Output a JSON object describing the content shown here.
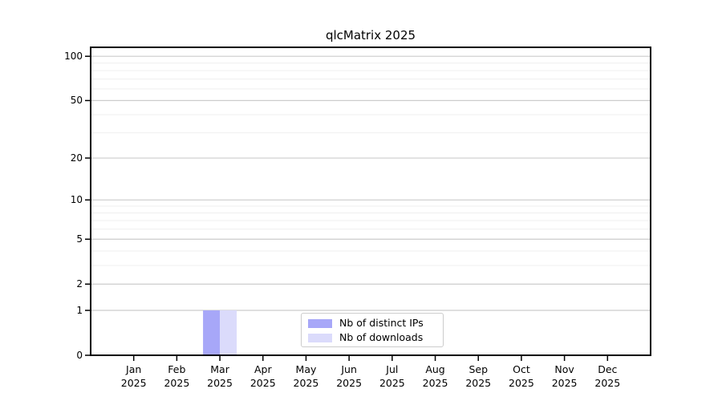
{
  "chart_data": {
    "type": "bar",
    "title": "qlcMatrix 2025",
    "categories": [
      "Jan 2025",
      "Feb 2025",
      "Mar 2025",
      "Apr 2025",
      "May 2025",
      "Jun 2025",
      "Jul 2025",
      "Aug 2025",
      "Sep 2025",
      "Oct 2025",
      "Nov 2025",
      "Dec 2025"
    ],
    "series": [
      {
        "name": "Nb of distinct IPs",
        "color": "#a7a7f8",
        "values": [
          0,
          0,
          1,
          0,
          0,
          0,
          0,
          0,
          0,
          0,
          0,
          0
        ]
      },
      {
        "name": "Nb of downloads",
        "color": "#dbdbfb",
        "values": [
          0,
          0,
          1,
          0,
          0,
          0,
          0,
          0,
          0,
          0,
          0,
          0
        ]
      }
    ],
    "xlabel": "",
    "ylabel": "",
    "yscale": "log1p",
    "ylim": [
      0,
      115
    ],
    "yticks": [
      0,
      1,
      2,
      5,
      10,
      20,
      50,
      100
    ],
    "minor_yticks": [
      3,
      4,
      6,
      7,
      8,
      9,
      30,
      40,
      60,
      70,
      80,
      90
    ],
    "grid": true,
    "legend_position": "lower center",
    "colors": {
      "grid_major": "#cccccc",
      "grid_minor": "#efefef",
      "axis": "#000000",
      "text": "#000000",
      "legend_border": "#cccccc"
    }
  }
}
